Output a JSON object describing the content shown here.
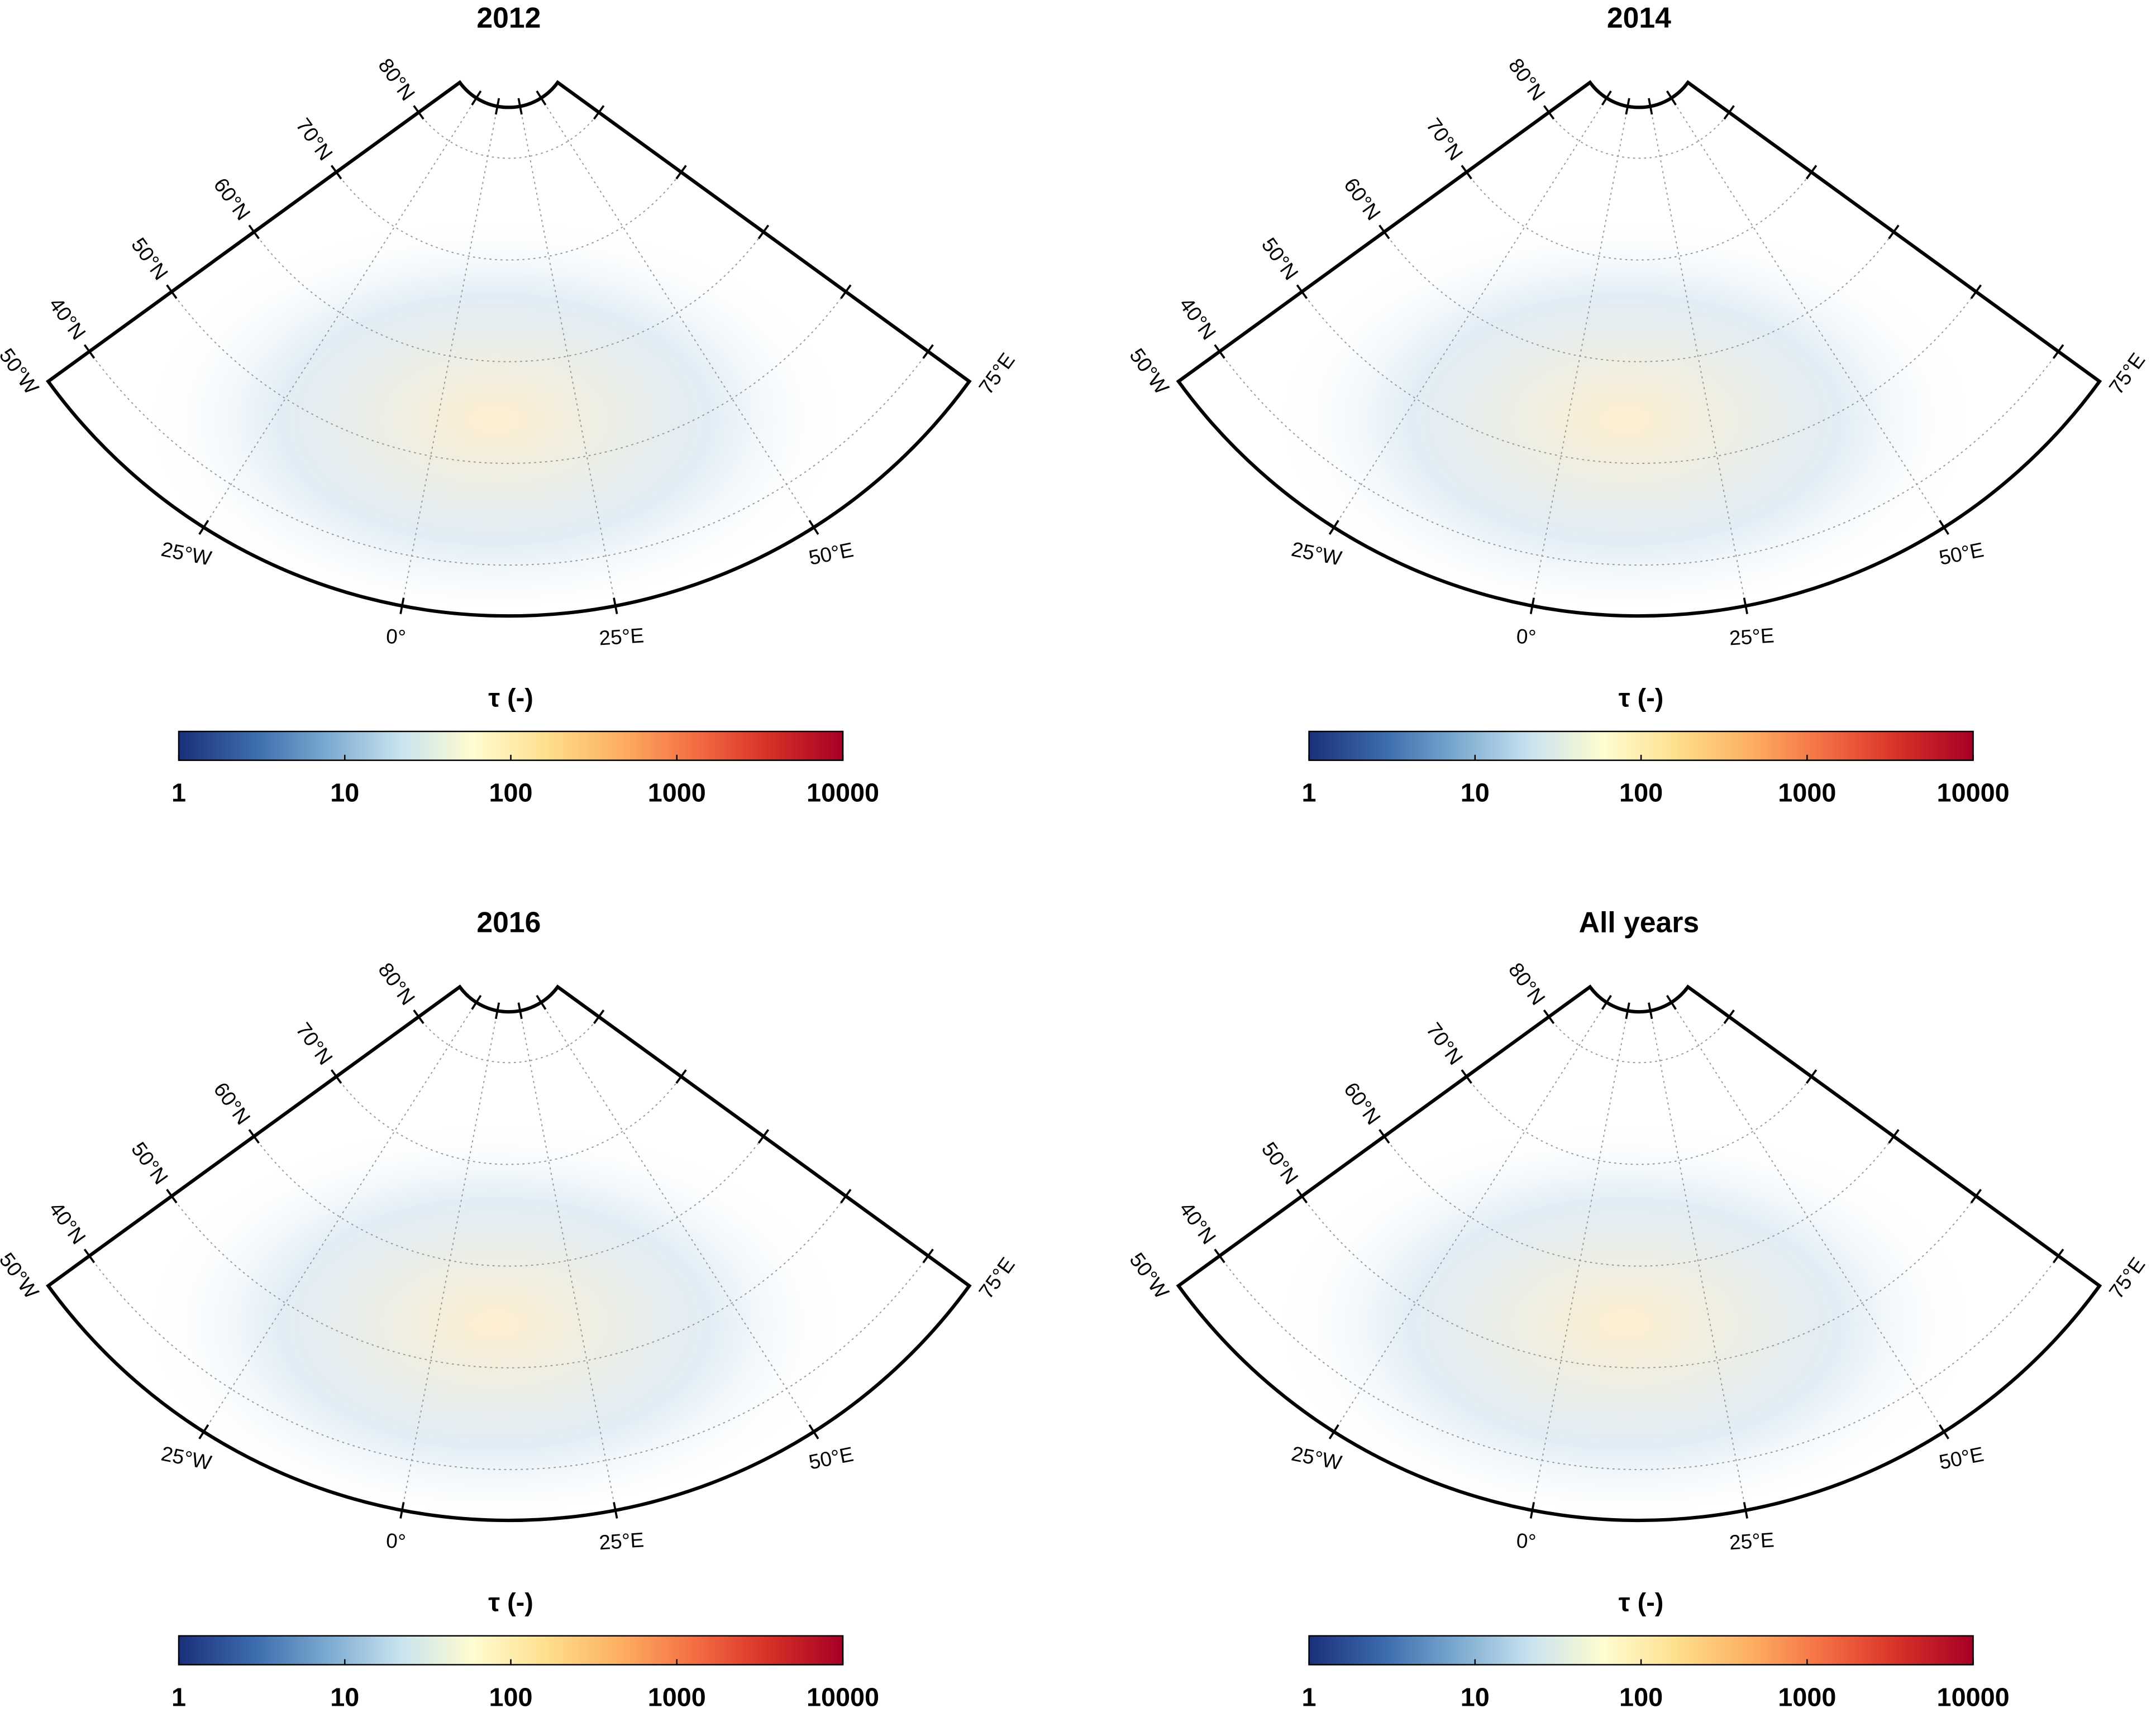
{
  "panels": [
    {
      "title": "2012",
      "lon_lim": [
        -50,
        75
      ],
      "lat_lim": [
        35,
        85
      ],
      "lat_ticks": [
        {
          "value": 40,
          "label": "40°N"
        },
        {
          "value": 50,
          "label": "50°N"
        },
        {
          "value": 60,
          "label": "60°N"
        },
        {
          "value": 70,
          "label": "70°N"
        },
        {
          "value": 80,
          "label": "80°N"
        }
      ],
      "lon_ticks": [
        {
          "value": -50,
          "label": "50°W"
        },
        {
          "value": -25,
          "label": "25°W"
        },
        {
          "value": 0,
          "label": "0°"
        },
        {
          "value": 25,
          "label": "25°E"
        },
        {
          "value": 50,
          "label": "50°E"
        },
        {
          "value": 75,
          "label": "75°E"
        }
      ],
      "colorbar": {
        "label": "τ (-)",
        "lim": [
          1,
          10000
        ],
        "ticks": [
          1,
          10,
          100,
          1000,
          10000
        ],
        "scale": "log",
        "colors": [
          "#1a2f7a",
          "#3b6aad",
          "#7aa9d0",
          "#c8e3ef",
          "#fffcd0",
          "#fedf8c",
          "#fdae61",
          "#f46d43",
          "#d73027",
          "#a50026"
        ]
      }
    },
    {
      "title": "2014",
      "lon_lim": [
        -50,
        75
      ],
      "lat_lim": [
        35,
        85
      ],
      "lat_ticks": [
        {
          "value": 40,
          "label": "40°N"
        },
        {
          "value": 50,
          "label": "50°N"
        },
        {
          "value": 60,
          "label": "60°N"
        },
        {
          "value": 70,
          "label": "70°N"
        },
        {
          "value": 80,
          "label": "80°N"
        }
      ],
      "lon_ticks": [
        {
          "value": -50,
          "label": "50°W"
        },
        {
          "value": -25,
          "label": "25°W"
        },
        {
          "value": 0,
          "label": "0°"
        },
        {
          "value": 25,
          "label": "25°E"
        },
        {
          "value": 50,
          "label": "50°E"
        },
        {
          "value": 75,
          "label": "75°E"
        }
      ],
      "colorbar": {
        "label": "τ (-)",
        "lim": [
          1,
          10000
        ],
        "ticks": [
          1,
          10,
          100,
          1000,
          10000
        ],
        "scale": "log",
        "colors": [
          "#1a2f7a",
          "#3b6aad",
          "#7aa9d0",
          "#c8e3ef",
          "#fffcd0",
          "#fedf8c",
          "#fdae61",
          "#f46d43",
          "#d73027",
          "#a50026"
        ]
      }
    },
    {
      "title": "2016",
      "lon_lim": [
        -50,
        75
      ],
      "lat_lim": [
        35,
        85
      ],
      "lat_ticks": [
        {
          "value": 40,
          "label": "40°N"
        },
        {
          "value": 50,
          "label": "50°N"
        },
        {
          "value": 60,
          "label": "60°N"
        },
        {
          "value": 70,
          "label": "70°N"
        },
        {
          "value": 80,
          "label": "80°N"
        }
      ],
      "lon_ticks": [
        {
          "value": -50,
          "label": "50°W"
        },
        {
          "value": -25,
          "label": "25°W"
        },
        {
          "value": 0,
          "label": "0°"
        },
        {
          "value": 25,
          "label": "25°E"
        },
        {
          "value": 50,
          "label": "50°E"
        },
        {
          "value": 75,
          "label": "75°E"
        }
      ],
      "colorbar": {
        "label": "τ (-)",
        "lim": [
          1,
          10000
        ],
        "ticks": [
          1,
          10,
          100,
          1000,
          10000
        ],
        "scale": "log",
        "colors": [
          "#1a2f7a",
          "#3b6aad",
          "#7aa9d0",
          "#c8e3ef",
          "#fffcd0",
          "#fedf8c",
          "#fdae61",
          "#f46d43",
          "#d73027",
          "#a50026"
        ]
      }
    },
    {
      "title": "All years",
      "lon_lim": [
        -50,
        75
      ],
      "lat_lim": [
        35,
        85
      ],
      "lat_ticks": [
        {
          "value": 40,
          "label": "40°N"
        },
        {
          "value": 50,
          "label": "50°N"
        },
        {
          "value": 60,
          "label": "60°N"
        },
        {
          "value": 70,
          "label": "70°N"
        },
        {
          "value": 80,
          "label": "80°N"
        }
      ],
      "lon_ticks": [
        {
          "value": -50,
          "label": "50°W"
        },
        {
          "value": -25,
          "label": "25°W"
        },
        {
          "value": 0,
          "label": "0°"
        },
        {
          "value": 25,
          "label": "25°E"
        },
        {
          "value": 50,
          "label": "50°E"
        },
        {
          "value": 75,
          "label": "75°E"
        }
      ],
      "colorbar": {
        "label": "τ (-)",
        "lim": [
          1,
          10000
        ],
        "ticks": [
          1,
          10,
          100,
          1000,
          10000
        ],
        "scale": "log",
        "colors": [
          "#1a2f7a",
          "#3b6aad",
          "#7aa9d0",
          "#c8e3ef",
          "#fffcd0",
          "#fedf8c",
          "#fdae61",
          "#f46d43",
          "#d73027",
          "#a50026"
        ]
      }
    }
  ]
}
